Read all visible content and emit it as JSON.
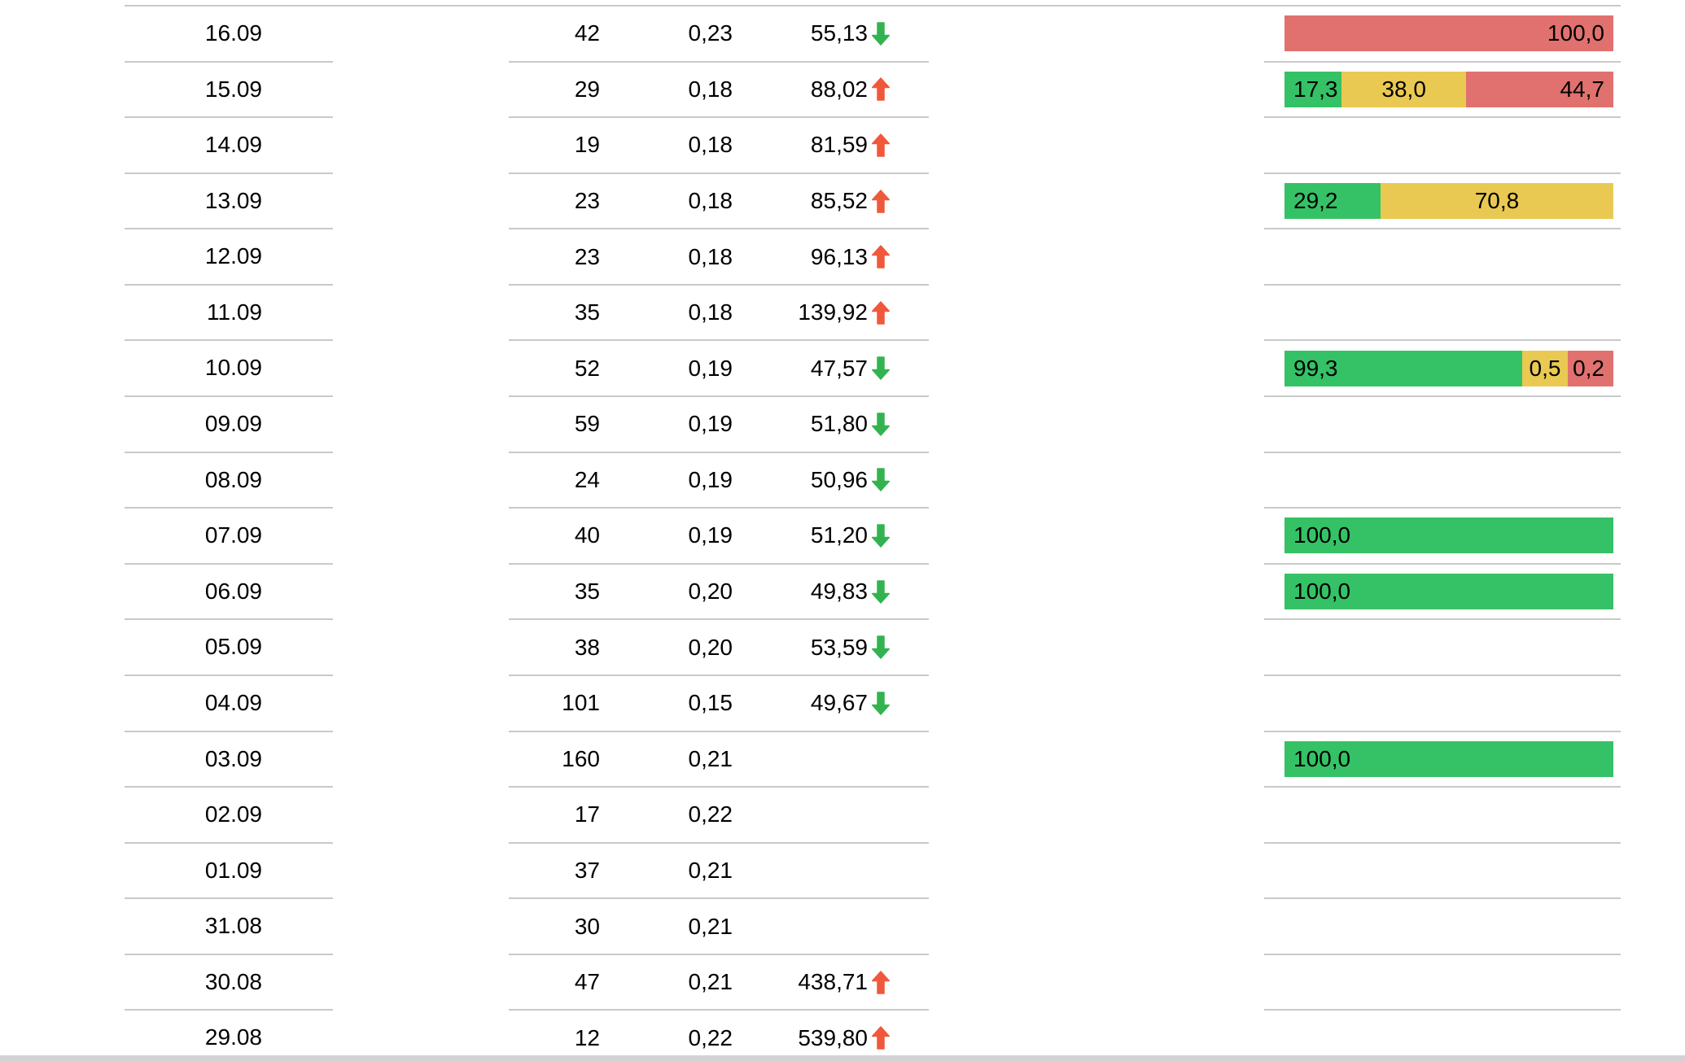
{
  "colors": {
    "green": "#35C266",
    "yellow": "#E9C952",
    "red": "#E0716E",
    "arrow_up": "#F0583C",
    "arrow_down": "#33B34F",
    "divider": "#C9C9C9",
    "scrollbar": "#D3D3D3",
    "text": "#000000"
  },
  "table": {
    "rows": [
      {
        "date": "16.09",
        "count": "42",
        "ratio": "0,23",
        "percent": "55,13",
        "trend": "down",
        "bar": [
          {
            "color": "red",
            "value": 100.0,
            "label": "100,0"
          }
        ]
      },
      {
        "date": "15.09",
        "count": "29",
        "ratio": "0,18",
        "percent": "88,02",
        "trend": "up",
        "bar": [
          {
            "color": "green",
            "value": 17.3,
            "label": "17,3"
          },
          {
            "color": "yellow",
            "value": 38.0,
            "label": "38,0"
          },
          {
            "color": "red",
            "value": 44.7,
            "label": "44,7"
          }
        ]
      },
      {
        "date": "14.09",
        "count": "19",
        "ratio": "0,18",
        "percent": "81,59",
        "trend": "up",
        "bar": []
      },
      {
        "date": "13.09",
        "count": "23",
        "ratio": "0,18",
        "percent": "85,52",
        "trend": "up",
        "bar": [
          {
            "color": "green",
            "value": 29.2,
            "label": "29,2"
          },
          {
            "color": "yellow",
            "value": 70.8,
            "label": "70,8"
          }
        ]
      },
      {
        "date": "12.09",
        "count": "23",
        "ratio": "0,18",
        "percent": "96,13",
        "trend": "up",
        "bar": []
      },
      {
        "date": "11.09",
        "count": "35",
        "ratio": "0,18",
        "percent": "139,92",
        "trend": "up",
        "bar": []
      },
      {
        "date": "10.09",
        "count": "52",
        "ratio": "0,19",
        "percent": "47,57",
        "trend": "down",
        "bar": [
          {
            "color": "green",
            "value": 99.3,
            "label": "99,3"
          },
          {
            "color": "yellow",
            "value": 0.5,
            "label": "0,5"
          },
          {
            "color": "red",
            "value": 0.2,
            "label": "0,2"
          }
        ]
      },
      {
        "date": "09.09",
        "count": "59",
        "ratio": "0,19",
        "percent": "51,80",
        "trend": "down",
        "bar": []
      },
      {
        "date": "08.09",
        "count": "24",
        "ratio": "0,19",
        "percent": "50,96",
        "trend": "down",
        "bar": []
      },
      {
        "date": "07.09",
        "count": "40",
        "ratio": "0,19",
        "percent": "51,20",
        "trend": "down",
        "bar": [
          {
            "color": "green",
            "value": 100.0,
            "label": "100,0"
          }
        ]
      },
      {
        "date": "06.09",
        "count": "35",
        "ratio": "0,20",
        "percent": "49,83",
        "trend": "down",
        "bar": [
          {
            "color": "green",
            "value": 100.0,
            "label": "100,0"
          }
        ]
      },
      {
        "date": "05.09",
        "count": "38",
        "ratio": "0,20",
        "percent": "53,59",
        "trend": "down",
        "bar": []
      },
      {
        "date": "04.09",
        "count": "101",
        "ratio": "0,15",
        "percent": "49,67",
        "trend": "down",
        "bar": []
      },
      {
        "date": "03.09",
        "count": "160",
        "ratio": "0,21",
        "percent": "",
        "trend": "",
        "bar": [
          {
            "color": "green",
            "value": 100.0,
            "label": "100,0"
          }
        ]
      },
      {
        "date": "02.09",
        "count": "17",
        "ratio": "0,22",
        "percent": "",
        "trend": "",
        "bar": []
      },
      {
        "date": "01.09",
        "count": "37",
        "ratio": "0,21",
        "percent": "",
        "trend": "",
        "bar": []
      },
      {
        "date": "31.08",
        "count": "30",
        "ratio": "0,21",
        "percent": "",
        "trend": "",
        "bar": []
      },
      {
        "date": "30.08",
        "count": "47",
        "ratio": "0,21",
        "percent": "438,71",
        "trend": "up",
        "bar": []
      },
      {
        "date": "29.08",
        "count": "12",
        "ratio": "0,22",
        "percent": "539,80",
        "trend": "up",
        "bar": []
      }
    ]
  }
}
